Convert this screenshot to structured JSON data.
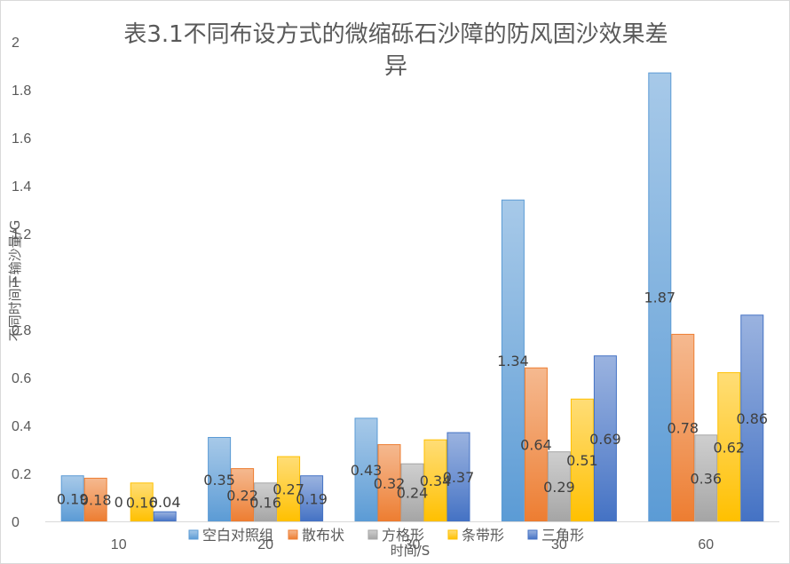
{
  "chart_data": {
    "type": "bar",
    "title": "表3.1不同布设方式的微缩砾石沙障的防风固沙效果差异",
    "title_lines": [
      "表3.1不同布设方式的微缩砾石沙障的防风固沙效果差",
      "异"
    ],
    "xlabel": "时间/S",
    "ylabel": "不同时间下输沙量/G",
    "categories": [
      "10",
      "20",
      "30",
      "30",
      "60"
    ],
    "ylim": [
      0,
      2
    ],
    "yticks": [
      "0",
      "0.2",
      "0.4",
      "0.6",
      "0.8",
      "1",
      "1.2",
      "1.4",
      "1.6",
      "1.8",
      "2"
    ],
    "grid": false,
    "legend_position": "bottom",
    "series": [
      {
        "name": "空白对照组",
        "color": "#9dc3e6",
        "values": [
          0.19,
          0.35,
          0.43,
          1.34,
          1.87
        ],
        "labels": [
          "0.19",
          "0.35",
          "0.43",
          "1.34",
          "1.87"
        ]
      },
      {
        "name": "散布状",
        "color": "#f4b183",
        "values": [
          0.18,
          0.22,
          0.32,
          0.64,
          0.78
        ],
        "labels": [
          "0.18",
          "0.22",
          "0.32",
          "0.64",
          "0.78"
        ]
      },
      {
        "name": "方格形",
        "color": "#c9c9c9",
        "values": [
          0,
          0.16,
          0.24,
          0.29,
          0.36
        ],
        "labels": [
          "0",
          "0.16",
          "0.24",
          "0.29",
          "0.36"
        ]
      },
      {
        "name": "条带形",
        "color": "#ffd966",
        "values": [
          0.16,
          0.27,
          0.34,
          0.51,
          0.62
        ],
        "labels": [
          "0.16",
          "0.27",
          "0.34",
          "0.51",
          "0.62"
        ]
      },
      {
        "name": "三角形",
        "color": "#8faadc",
        "values": [
          0.04,
          0.19,
          0.37,
          0.69,
          0.86
        ],
        "labels": [
          "0.04",
          "0.19",
          "0.37",
          "0.69",
          "0.86"
        ]
      }
    ],
    "series_edge_colors": [
      "#5b9bd5",
      "#ed7d31",
      "#a5a5a5",
      "#ffc000",
      "#4472c4"
    ]
  }
}
